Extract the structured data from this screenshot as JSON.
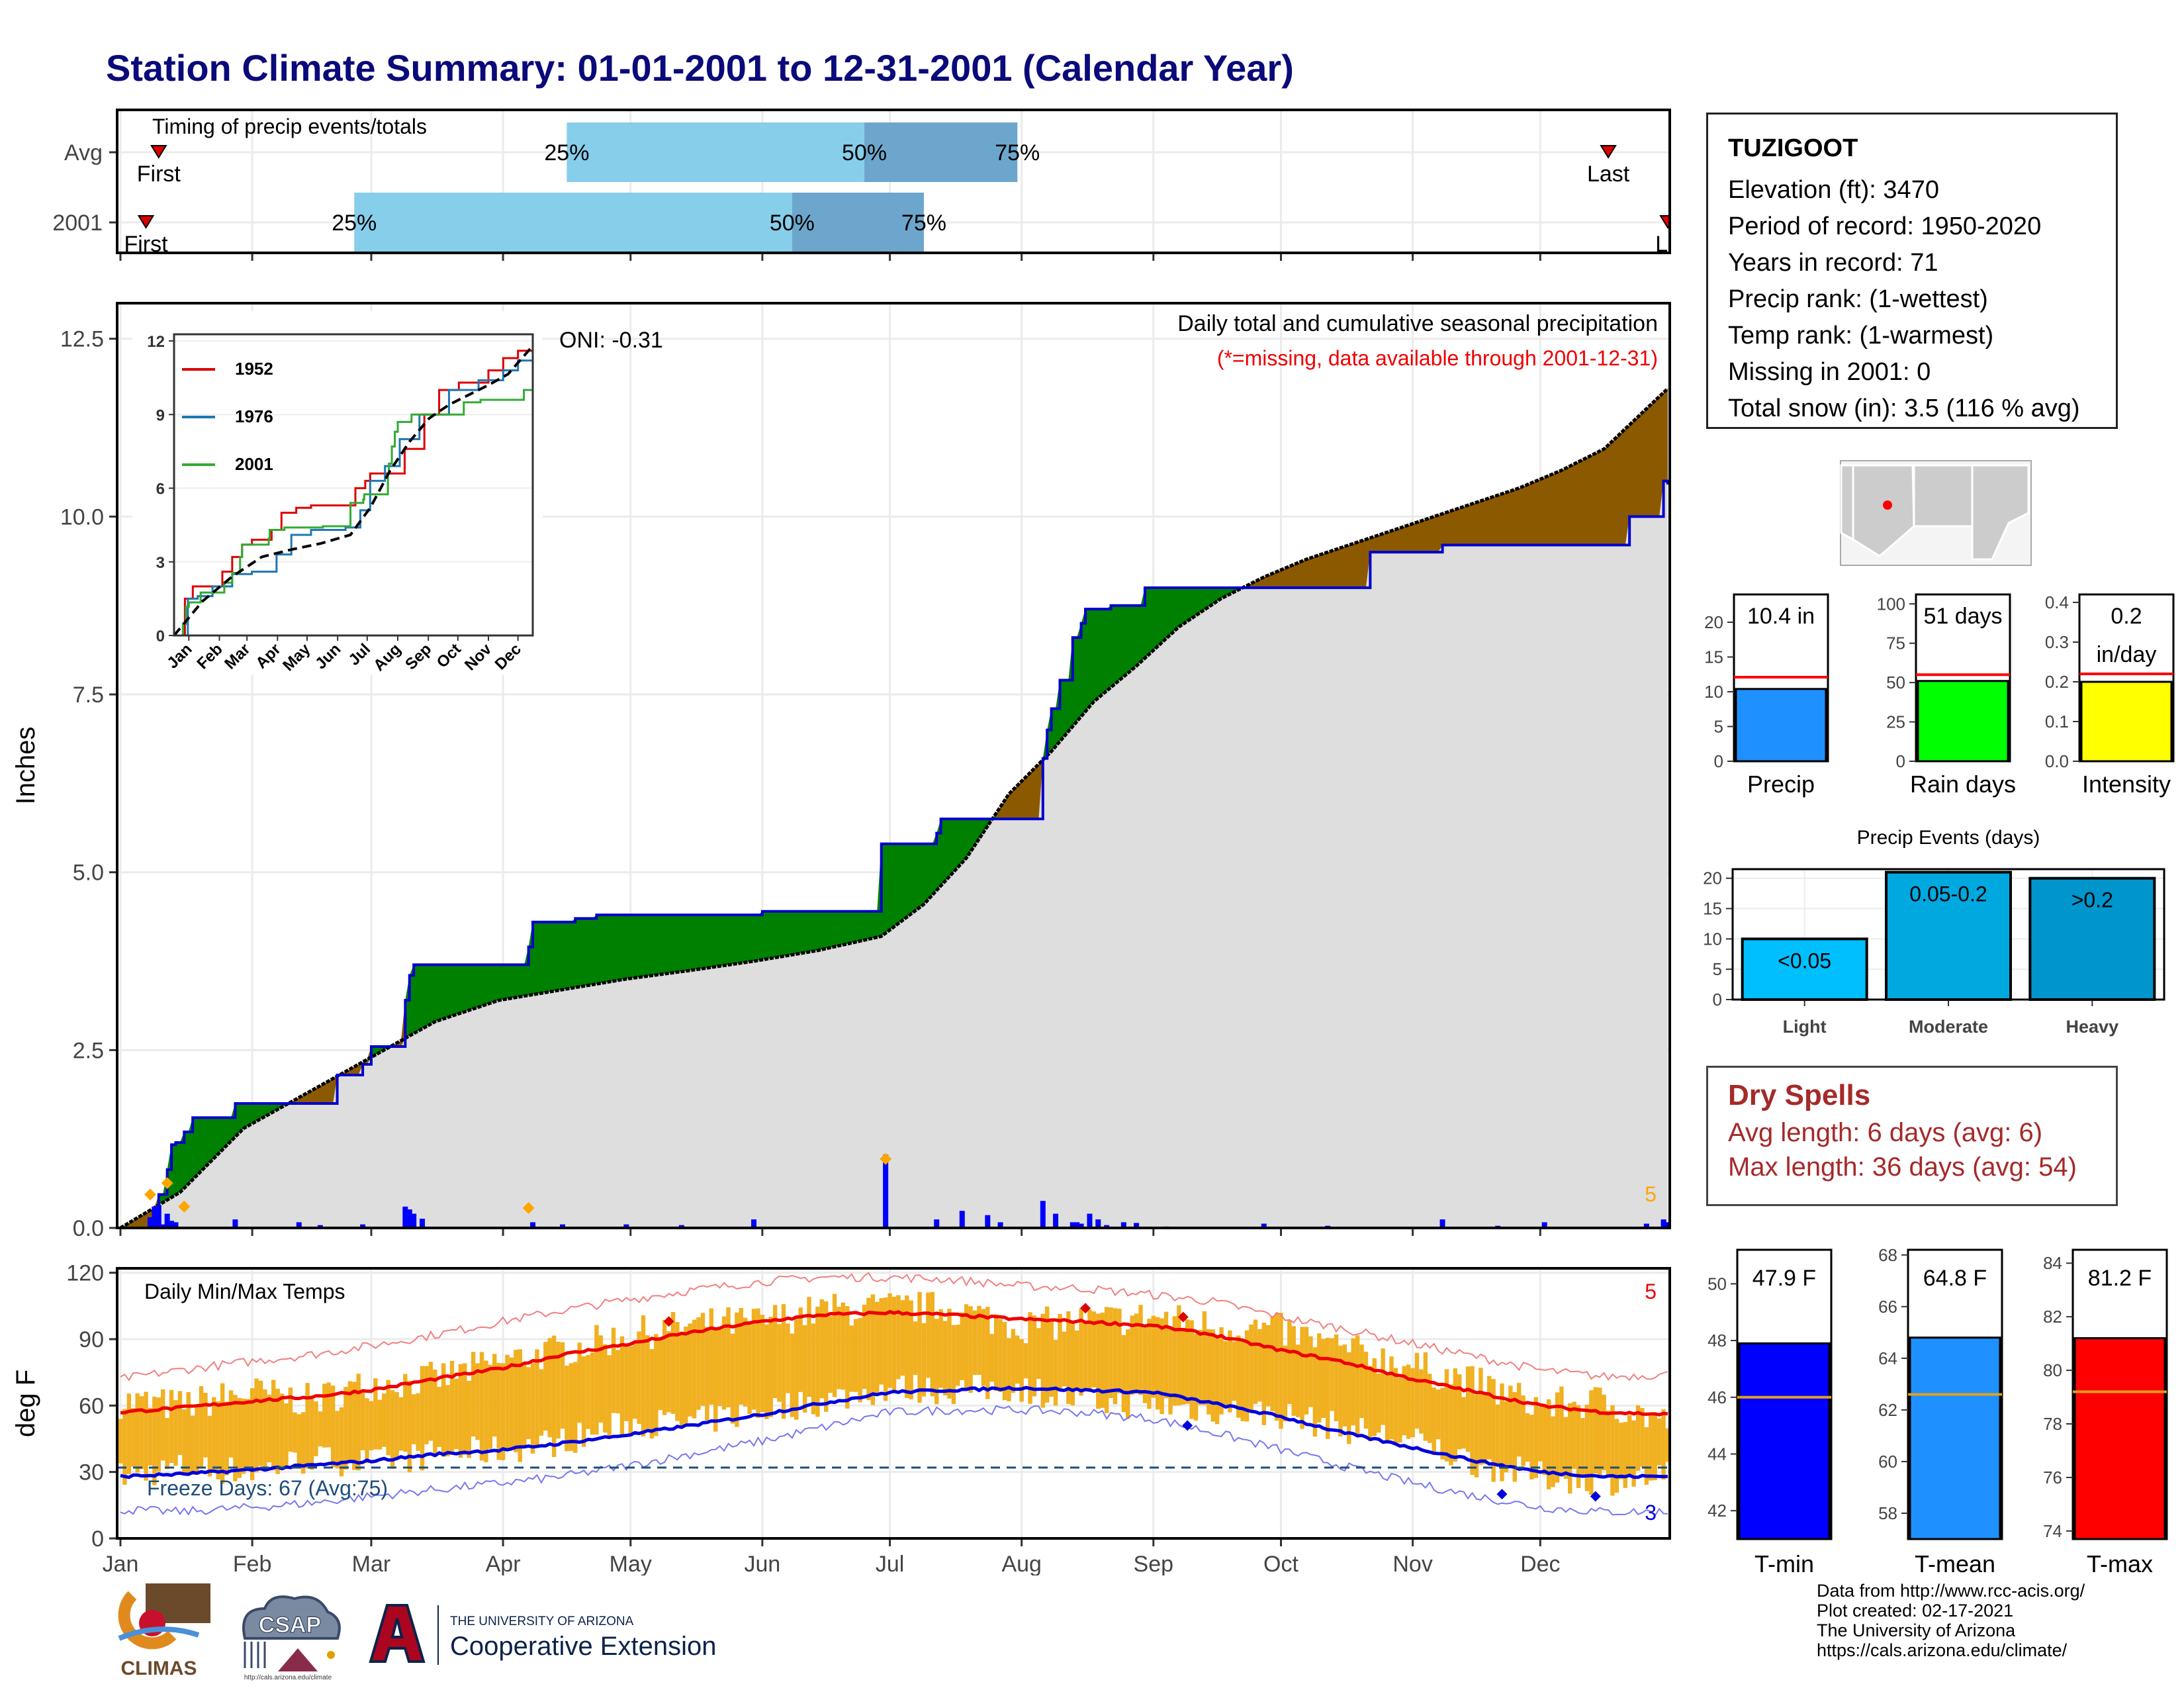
{
  "title": "Station Climate Summary: 01-01-2001 to 12-31-2001 (Calendar Year)",
  "timing": {
    "label": "Timing of precip events/totals",
    "rows": [
      {
        "name": "Avg",
        "first_day": 10,
        "last_day": 351,
        "p25_day": 106,
        "p50_day": 176,
        "p75_day": 212,
        "first_label": "First",
        "last_label": "Last",
        "p25_label": "25%",
        "p50_label": "50%",
        "p75_label": "75%"
      },
      {
        "name": "2001",
        "first_day": 7,
        "last_day": 365,
        "p25_day": 56,
        "p50_day": 159,
        "p75_day": 190,
        "first_label": "First",
        "last_label": "La",
        "p25_label": "25%",
        "p50_label": "50%",
        "p75_label": "75%"
      }
    ],
    "colors": {
      "light": "#87ceeb",
      "dark": "#6ca6cd",
      "marker": "#dd0000"
    }
  },
  "chart_data": [
    {
      "type": "area",
      "name": "cumulative_precip",
      "title": "Daily total and cumulative seasonal precipitation",
      "subtitle": "(*=missing, data available through 2001-12-31)",
      "oni": "ONI: -0.31",
      "ylabel": "Inches",
      "ylim": [
        0,
        13
      ],
      "yticks": [
        0,
        2.5,
        5,
        7.5,
        10,
        12.5
      ],
      "ytick_labels": [
        "0.0",
        "2.5",
        "5.0",
        "7.5",
        "10.0",
        "12.5"
      ],
      "months": [
        "Jan",
        "Feb",
        "Mar",
        "Apr",
        "May",
        "Jun",
        "Jul",
        "Aug",
        "Sep",
        "Oct",
        "Nov",
        "Dec"
      ],
      "month_start_days": [
        1,
        32,
        60,
        91,
        121,
        152,
        182,
        213,
        244,
        274,
        305,
        335
      ],
      "corner_count": "5",
      "observed_2001": {
        "days": [
          1,
          10,
          11,
          12,
          13,
          14,
          16,
          18,
          28,
          52,
          58,
          60,
          68,
          69,
          70,
          75,
          76,
          97,
          98,
          108,
          113,
          141,
          152,
          180,
          193,
          194,
          218,
          219,
          220,
          222,
          225,
          227,
          228,
          234,
          242,
          256,
          295,
          312,
          356,
          364,
          365
        ],
        "cumulative": [
          0,
          0.47,
          0.47,
          0.82,
          1.17,
          1.2,
          1.35,
          1.55,
          1.75,
          2.15,
          2.3,
          2.55,
          3.2,
          3.55,
          3.7,
          3.7,
          3.7,
          3.95,
          4.3,
          4.35,
          4.4,
          4.4,
          4.45,
          5.4,
          5.55,
          5.75,
          6.6,
          7.0,
          7.3,
          7.7,
          8.3,
          8.5,
          8.7,
          8.75,
          9.0,
          9.0,
          9.5,
          9.6,
          10.0,
          10.5,
          10.45
        ]
      },
      "average_cumulative": {
        "days": [
          1,
          15,
          30,
          45,
          60,
          75,
          90,
          105,
          120,
          135,
          150,
          165,
          180,
          190,
          200,
          210,
          220,
          230,
          240,
          250,
          260,
          270,
          280,
          290,
          300,
          310,
          320,
          330,
          340,
          350,
          365
        ],
        "cumulative": [
          0,
          0.5,
          1.4,
          1.9,
          2.4,
          2.9,
          3.2,
          3.35,
          3.5,
          3.62,
          3.75,
          3.9,
          4.1,
          4.55,
          5.2,
          6.1,
          6.7,
          7.4,
          7.9,
          8.45,
          8.85,
          9.15,
          9.4,
          9.6,
          9.8,
          10.0,
          10.2,
          10.4,
          10.65,
          10.95,
          11.8
        ]
      },
      "daily_precip_days": [
        8,
        9,
        10,
        11,
        12,
        13,
        14,
        28,
        43,
        48,
        58,
        68,
        69,
        70,
        72,
        98,
        105,
        120,
        133,
        150,
        181,
        193,
        199,
        205,
        208,
        218,
        221,
        225,
        226,
        227,
        229,
        231,
        233,
        237,
        240,
        247,
        270,
        285,
        312,
        325,
        336,
        360,
        364,
        365
      ],
      "daily_precip_values": [
        0.15,
        0.3,
        0.32,
        0.05,
        0.2,
        0.1,
        0.08,
        0.12,
        0.08,
        0.04,
        0.05,
        0.3,
        0.26,
        0.2,
        0.13,
        0.08,
        0.05,
        0.05,
        0.04,
        0.12,
        1.03,
        0.12,
        0.24,
        0.18,
        0.08,
        0.38,
        0.2,
        0.08,
        0.08,
        0.06,
        0.2,
        0.12,
        0.04,
        0.08,
        0.07,
        0.02,
        0.06,
        0.03,
        0.12,
        0.03,
        0.08,
        0.06,
        0.12,
        0.08
      ],
      "max_markers_days": [
        8,
        12,
        16,
        97,
        181
      ],
      "max_markers_values": [
        0.47,
        0.63,
        0.3,
        0.28,
        0.97
      ],
      "colors": {
        "above": "#008000",
        "below": "#8b5a00",
        "base": "#dedede",
        "line": "#0000cc",
        "avg": "#000000",
        "bars": "#0000ff",
        "marker": "#ffa500"
      }
    },
    {
      "type": "line",
      "name": "inset_cumulative",
      "ylim": [
        0,
        12
      ],
      "yticks": [
        0,
        3,
        6,
        9,
        12
      ],
      "months": [
        "Jan",
        "Feb",
        "Mar",
        "Apr",
        "May",
        "Jun",
        "Jul",
        "Aug",
        "Sep",
        "Oct",
        "Nov",
        "Dec"
      ],
      "series": [
        {
          "name": "1952",
          "color": "#dd0000",
          "days": [
            1,
            12,
            20,
            50,
            60,
            70,
            80,
            100,
            110,
            125,
            140,
            170,
            185,
            195,
            200,
            215,
            235,
            255,
            270,
            290,
            300,
            320,
            335,
            350,
            365
          ],
          "values": [
            0,
            1.5,
            2,
            2.6,
            3.2,
            3.7,
            3.9,
            4.3,
            5.0,
            5.2,
            5.3,
            5.3,
            6.0,
            6.3,
            6.6,
            6.6,
            7.6,
            9.0,
            10.0,
            10.3,
            10.3,
            10.8,
            11.3,
            11.6,
            12.2
          ]
        },
        {
          "name": "1976",
          "color": "#1f77b4",
          "days": [
            1,
            15,
            25,
            40,
            60,
            80,
            105,
            120,
            140,
            165,
            175,
            190,
            200,
            215,
            230,
            250,
            280,
            310,
            335,
            350,
            365
          ],
          "values": [
            0,
            1.5,
            1.6,
            2.0,
            2.5,
            2.6,
            3.3,
            4.1,
            4.3,
            4.3,
            4.4,
            5.1,
            6.3,
            6.9,
            8.0,
            9.0,
            10.0,
            10.4,
            10.8,
            11.2,
            11.3
          ]
        },
        {
          "name": "2001",
          "color": "#33aa33",
          "days": [
            1,
            10,
            13,
            16,
            28,
            52,
            60,
            68,
            70,
            97,
            98,
            113,
            152,
            180,
            193,
            194,
            218,
            219,
            222,
            225,
            228,
            242,
            295,
            312,
            356,
            365
          ],
          "values": [
            0,
            0.47,
            1.17,
            1.35,
            1.75,
            2.15,
            2.55,
            3.2,
            3.7,
            3.95,
            4.3,
            4.4,
            4.45,
            5.4,
            5.55,
            5.75,
            6.6,
            7.0,
            7.7,
            8.3,
            8.7,
            9.0,
            9.5,
            9.6,
            10.0,
            10.45
          ]
        },
        {
          "name": "avg",
          "color": "#000000",
          "dashed": true,
          "days": [
            1,
            30,
            60,
            90,
            120,
            150,
            180,
            200,
            220,
            240,
            260,
            280,
            300,
            320,
            340,
            365
          ],
          "values": [
            0,
            1.4,
            2.4,
            3.2,
            3.5,
            3.75,
            4.1,
            5.2,
            6.7,
            7.9,
            8.85,
            9.4,
            9.8,
            10.2,
            10.65,
            11.8
          ]
        }
      ]
    },
    {
      "type": "bar",
      "name": "precip_total",
      "categories": [
        "Precip"
      ],
      "values": [
        10.4
      ],
      "avg": 12.1,
      "ylim": [
        0,
        24
      ],
      "yticks": [
        0,
        5,
        10,
        15,
        20
      ],
      "label": "10.4 in",
      "color": "#1e90ff"
    },
    {
      "type": "bar",
      "name": "rain_days",
      "categories": [
        "Rain days"
      ],
      "values": [
        51
      ],
      "avg": 55,
      "ylim": [
        0,
        106
      ],
      "yticks": [
        0,
        25,
        50,
        75,
        100
      ],
      "label": "51 days",
      "color": "#00ff00"
    },
    {
      "type": "bar",
      "name": "intensity",
      "categories": [
        "Intensity"
      ],
      "values": [
        0.2
      ],
      "avg": 0.22,
      "ylim": [
        0,
        0.42
      ],
      "yticks": [
        0.0,
        0.1,
        0.2,
        0.3,
        0.4
      ],
      "ytick_labels": [
        "0.0",
        "0.1",
        "0.2",
        "0.3",
        "0.4"
      ],
      "label": "0.2",
      "label2": "in/day",
      "color": "#ffff00"
    },
    {
      "type": "bar",
      "name": "precip_events",
      "title": "Precip Events (days)",
      "categories": [
        "Light",
        "Moderate",
        "Heavy"
      ],
      "values": [
        10,
        21,
        20
      ],
      "labels": [
        "<0.05",
        "0.05-0.2",
        ">0.2"
      ],
      "ylim": [
        0,
        21.5
      ],
      "yticks": [
        0,
        5,
        10,
        15,
        20
      ],
      "colors": [
        "#00bfff",
        "#00a8e0",
        "#0095cc"
      ]
    },
    {
      "type": "line",
      "name": "daily_temps",
      "title": "Daily Min/Max Temps",
      "ylabel": "deg F",
      "ylim": [
        0,
        122
      ],
      "yticks": [
        0,
        30,
        60,
        90,
        120
      ],
      "months": [
        "Jan",
        "Feb",
        "Mar",
        "Apr",
        "May",
        "Jun",
        "Jul",
        "Aug",
        "Sep",
        "Oct",
        "Nov",
        "Dec"
      ],
      "month_start_days": [
        1,
        32,
        60,
        91,
        121,
        152,
        182,
        213,
        244,
        274,
        305,
        335
      ],
      "freeze_label": "Freeze Days: 67 (Avg:75)",
      "freeze_line": 32,
      "max_count": "5",
      "min_count": "3",
      "anchor_days": [
        1,
        15,
        32,
        46,
        60,
        75,
        91,
        105,
        121,
        135,
        152,
        166,
        182,
        196,
        213,
        227,
        244,
        258,
        274,
        288,
        305,
        320,
        335,
        350,
        365
      ],
      "avg_max": [
        57,
        59,
        62,
        64,
        67,
        72,
        77,
        83,
        88,
        93,
        98,
        101,
        102,
        101,
        99,
        98,
        96,
        92,
        85,
        80,
        72,
        66,
        60,
        57,
        56
      ],
      "avg_min": [
        28,
        29,
        31,
        33,
        35,
        38,
        40,
        43,
        47,
        51,
        56,
        61,
        66,
        67,
        68,
        67,
        66,
        61,
        55,
        48,
        41,
        35,
        30,
        28,
        28
      ],
      "rec_max": [
        72,
        76,
        80,
        83,
        87,
        92,
        98,
        103,
        108,
        112,
        116,
        118,
        118,
        117,
        114,
        113,
        110,
        107,
        100,
        95,
        88,
        82,
        76,
        73,
        74
      ],
      "rec_min": [
        13,
        12,
        14,
        16,
        19,
        22,
        25,
        28,
        33,
        38,
        44,
        50,
        57,
        58,
        58,
        57,
        54,
        48,
        40,
        33,
        25,
        19,
        14,
        12,
        12
      ],
      "obs_max": [
        62,
        60,
        66,
        62,
        70,
        72,
        80,
        85,
        92,
        96,
        98,
        103,
        104,
        104,
        96,
        98,
        100,
        96,
        94,
        86,
        78,
        70,
        60,
        62,
        52
      ],
      "obs_min": [
        28,
        32,
        30,
        36,
        34,
        38,
        40,
        44,
        52,
        52,
        58,
        62,
        68,
        67,
        68,
        62,
        60,
        58,
        56,
        50,
        44,
        34,
        28,
        26,
        28
      ],
      "max_records_days": [
        130,
        228,
        251
      ],
      "max_records_values": [
        98,
        104,
        100
      ],
      "min_records_days": [
        252,
        326,
        348
      ],
      "min_records_values": [
        51,
        20,
        19
      ],
      "colors": {
        "bars": "#f0b020",
        "avg_max": "#ee0000",
        "avg_min": "#0000dd",
        "rec_max": "#f08080",
        "rec_min": "#7777ee",
        "freeze": "#1f4e79"
      }
    },
    {
      "type": "bar",
      "name": "t_min",
      "categories": [
        "T-min"
      ],
      "values": [
        47.9
      ],
      "avg": 46,
      "ylim": [
        41,
        51.2
      ],
      "yticks": [
        42,
        44,
        46,
        48,
        50
      ],
      "label": "47.9 F",
      "color": "#0000ff"
    },
    {
      "type": "bar",
      "name": "t_mean",
      "categories": [
        "T-mean"
      ],
      "values": [
        64.8
      ],
      "avg": 62.6,
      "ylim": [
        57,
        68.2
      ],
      "yticks": [
        58,
        60,
        62,
        64,
        66,
        68
      ],
      "label": "64.8 F",
      "color": "#1e90ff"
    },
    {
      "type": "bar",
      "name": "t_max",
      "categories": [
        "T-max"
      ],
      "values": [
        81.2
      ],
      "avg": 79.2,
      "ylim": [
        73.7,
        84.5
      ],
      "yticks": [
        74,
        76,
        78,
        80,
        82,
        84
      ],
      "label": "81.2 F",
      "color": "#ff0000"
    }
  ],
  "station_info": {
    "name": "TUZIGOOT",
    "elevation": "Elevation (ft): 3470",
    "period": "Period of record: 1950-2020",
    "years": "Years in record: 71",
    "precip_rank": "Precip rank:  (1-wettest)",
    "temp_rank": "Temp rank:  (1-warmest)",
    "missing": "Missing in 2001: 0",
    "snow": "Total snow (in): 3.5 (116 % avg)"
  },
  "dry_spells": {
    "title": "Dry Spells",
    "avg": "Avg length: 6 days (avg: 6)",
    "max": "Max length: 36 days (avg: 54)"
  },
  "footer": {
    "line1": "Data from http://www.rcc-acis.org/",
    "line2": "Plot created: 02-17-2021",
    "line3": "The University of Arizona",
    "line4": "https://cals.arizona.edu/climate/"
  },
  "logos": {
    "climas": "CLIMAS",
    "csap": "CSAP",
    "csap_url": "http://cals.arizona.edu/climate",
    "ua_small": "THE UNIVERSITY OF ARIZONA",
    "ua_big": "Cooperative Extension"
  }
}
